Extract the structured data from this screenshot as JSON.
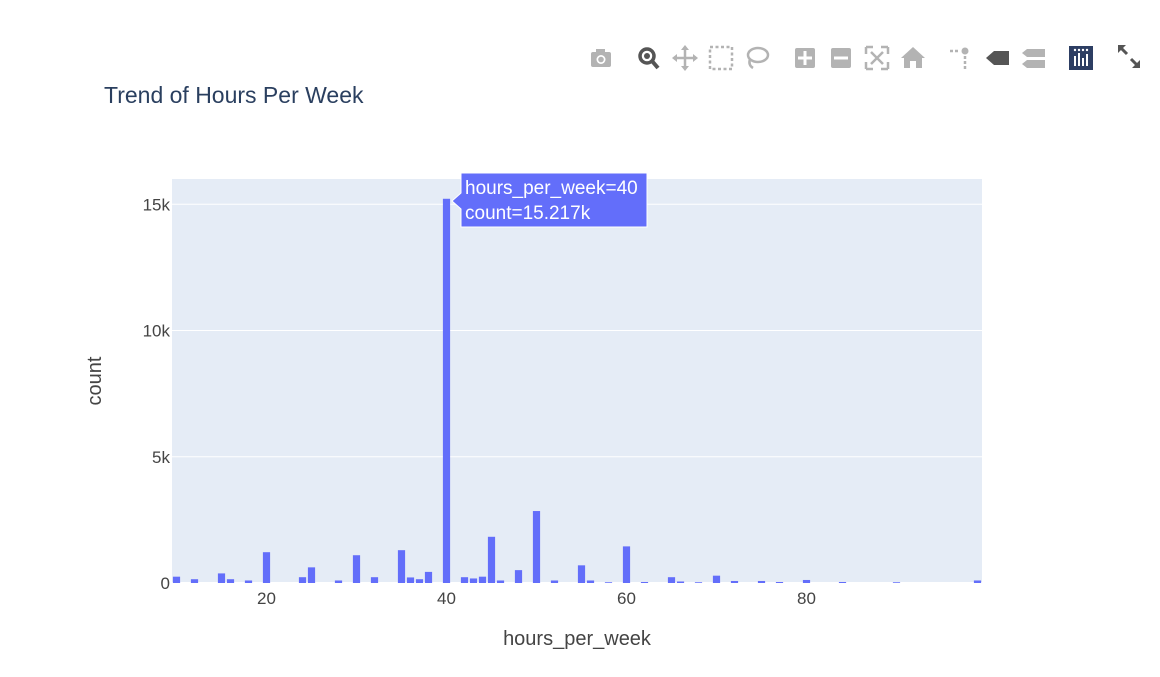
{
  "chart_data": {
    "type": "bar",
    "title": "Trend of Hours Per Week",
    "xlabel": "hours_per_week",
    "ylabel": "count",
    "xlim": [
      9.5,
      99.5
    ],
    "ylim": [
      0,
      16000
    ],
    "xticks": [
      20,
      40,
      60,
      80
    ],
    "xtick_labels": [
      "20",
      "40",
      "60",
      "80"
    ],
    "yticks": [
      0,
      5000,
      10000,
      15000
    ],
    "ytick_labels": [
      "0",
      "5k",
      "10k",
      "15k"
    ],
    "grid": true,
    "bar_color": "#636efa",
    "plot_bgcolor": "#e5ecf6",
    "x": [
      10,
      12,
      15,
      16,
      18,
      20,
      24,
      25,
      28,
      30,
      32,
      35,
      36,
      37,
      38,
      40,
      42,
      43,
      44,
      45,
      46,
      48,
      50,
      52,
      55,
      56,
      58,
      60,
      62,
      65,
      66,
      68,
      70,
      72,
      75,
      77,
      80,
      84,
      90,
      99
    ],
    "values": [
      250,
      150,
      380,
      150,
      100,
      1220,
      230,
      620,
      100,
      1100,
      230,
      1300,
      220,
      150,
      440,
      15217,
      230,
      180,
      250,
      1830,
      100,
      510,
      2850,
      100,
      700,
      100,
      30,
      1450,
      40,
      230,
      60,
      30,
      290,
      80,
      80,
      40,
      120,
      40,
      30,
      100
    ],
    "hover": {
      "line1": "hours_per_week=40",
      "line2": "count=15.217k"
    }
  },
  "modebar": {
    "icons": [
      "camera-icon",
      "zoom-icon",
      "pan-icon",
      "box-select-icon",
      "lasso-select-icon",
      "zoom-in-icon",
      "zoom-out-icon",
      "autoscale-icon",
      "reset-axes-icon",
      "spike-lines-icon",
      "hover-closest-icon",
      "hover-compare-icon",
      "plotly-logo-icon",
      "fullscreen-icon"
    ]
  }
}
